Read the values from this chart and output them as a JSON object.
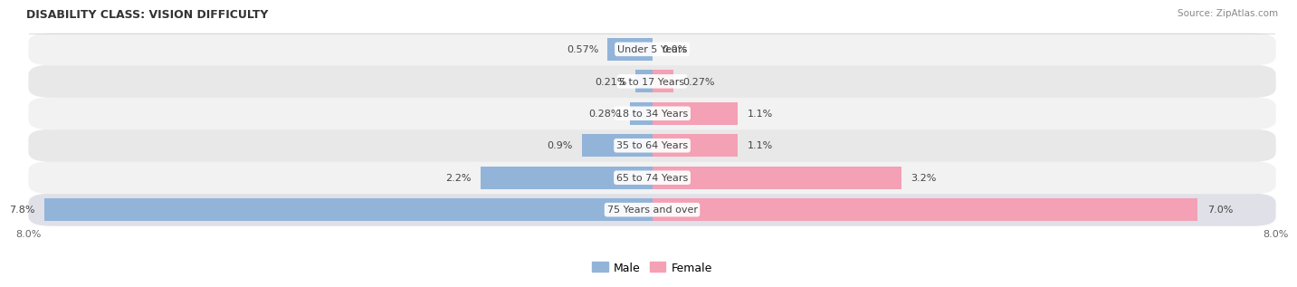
{
  "title": "DISABILITY CLASS: VISION DIFFICULTY",
  "source": "Source: ZipAtlas.com",
  "categories": [
    "Under 5 Years",
    "5 to 17 Years",
    "18 to 34 Years",
    "35 to 64 Years",
    "65 to 74 Years",
    "75 Years and over"
  ],
  "male_values": [
    0.57,
    0.21,
    0.28,
    0.9,
    2.2,
    7.8
  ],
  "female_values": [
    0.0,
    0.27,
    1.1,
    1.1,
    3.2,
    7.0
  ],
  "male_labels": [
    "0.57%",
    "0.21%",
    "0.28%",
    "0.9%",
    "2.2%",
    "7.8%"
  ],
  "female_labels": [
    "0.0%",
    "0.27%",
    "1.1%",
    "1.1%",
    "3.2%",
    "7.0%"
  ],
  "male_color": "#92b4d8",
  "female_color": "#f4a0b5",
  "row_colors": [
    "#f2f2f2",
    "#e8e8e8",
    "#f2f2f2",
    "#e8e8e8",
    "#f2f2f2",
    "#e0e0e8"
  ],
  "axis_max": 8.0,
  "title_fontsize": 9,
  "label_fontsize": 8,
  "category_fontsize": 8,
  "legend_fontsize": 9,
  "source_fontsize": 7.5
}
